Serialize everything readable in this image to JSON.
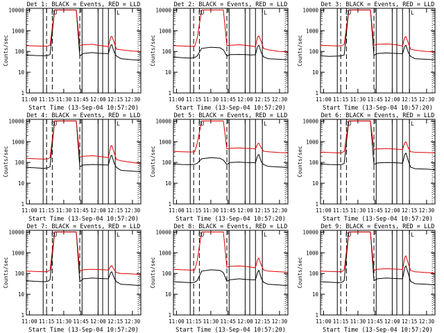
{
  "figure": {
    "xtick_labels": [
      "11:00",
      "11:15",
      "11:30",
      "11:45",
      "12:00",
      "12:15",
      "12:30"
    ],
    "ytick_labels": [
      "1",
      "10",
      "100",
      "1000",
      "10000"
    ],
    "colors": {
      "events": "#000000",
      "lld": "#e00000",
      "frame": "#000000",
      "background": "#ffffff"
    },
    "markers": {
      "D": "D",
      "U": "U",
      "L": "L"
    }
  },
  "chart_data": [
    {
      "type": "line",
      "panel": "1",
      "title": "Det 1: BLACK = Events, RED = LLD",
      "xlabel": "Start Time (13-Sep-04 10:57:20)",
      "ylabel": "Counts/sec",
      "yscale": "log",
      "ylim": [
        1,
        12000
      ],
      "xlim": [
        "10:57:20",
        "12:37:20"
      ],
      "x": [
        "10:57",
        "11:05",
        "11:13",
        "11:16",
        "11:18",
        "11:22",
        "11:30",
        "11:38",
        "11:41",
        "11:44",
        "11:47",
        "11:55",
        "12:00",
        "12:06",
        "12:09",
        "12:11",
        "12:12",
        "12:14",
        "12:16",
        "12:20",
        "12:30",
        "12:37"
      ],
      "series": [
        {
          "name": "Events",
          "values": [
            68,
            64,
            62,
            65,
            70,
            10000,
            10000,
            10000,
            10000,
            60,
            80,
            88,
            82,
            80,
            78,
            200,
            210,
            95,
            60,
            45,
            40,
            38
          ]
        },
        {
          "name": "LLD",
          "values": [
            190,
            185,
            180,
            185,
            200,
            10000,
            10000,
            10000,
            10000,
            190,
            210,
            220,
            200,
            180,
            170,
            500,
            540,
            280,
            130,
            120,
            105,
            100
          ]
        }
      ],
      "vertical_lines": {
        "dashed": [
          "11:15",
          "11:20",
          "11:44"
        ],
        "solid": [
          "11:12",
          "11:46",
          "12:00",
          "12:04",
          "12:09",
          "12:15"
        ],
        "dotted": [
          "12:35"
        ]
      }
    },
    {
      "type": "line",
      "panel": "2",
      "title": "Det 2: BLACK = Events, RED = LLD",
      "xlabel": "Start Time (13-Sep-04 10:57:20)",
      "ylabel": "Counts/sec",
      "yscale": "log",
      "ylim": [
        1,
        12000
      ],
      "xlim": [
        "10:57:20",
        "12:37:20"
      ],
      "x": [
        "10:57",
        "11:05",
        "11:13",
        "11:16",
        "11:18",
        "11:22",
        "11:30",
        "11:38",
        "11:41",
        "11:44",
        "11:47",
        "11:55",
        "12:00",
        "12:06",
        "12:09",
        "12:11",
        "12:12",
        "12:14",
        "12:16",
        "12:20",
        "12:30",
        "12:37"
      ],
      "series": [
        {
          "name": "Events",
          "values": [
            55,
            50,
            48,
            52,
            60,
            140,
            160,
            150,
            120,
            60,
            70,
            72,
            70,
            68,
            70,
            180,
            200,
            90,
            55,
            45,
            42,
            40
          ]
        },
        {
          "name": "LLD",
          "values": [
            190,
            185,
            175,
            180,
            420,
            10000,
            10000,
            10000,
            10000,
            190,
            200,
            210,
            200,
            180,
            170,
            520,
            560,
            300,
            140,
            120,
            100,
            95
          ]
        }
      ],
      "vertical_lines": {
        "dashed": [
          "11:15",
          "11:20",
          "11:44"
        ],
        "solid": [
          "11:12",
          "11:46",
          "12:00",
          "12:04",
          "12:09",
          "12:15"
        ],
        "dotted": [
          "12:35"
        ]
      }
    },
    {
      "type": "line",
      "panel": "3",
      "title": "Det 3: BLACK = Events, RED = LLD",
      "xlabel": "Start Time (13-Sep-04 10:57:20)",
      "ylabel": "Counts/sec",
      "yscale": "log",
      "ylim": [
        1,
        12000
      ],
      "xlim": [
        "10:57:20",
        "12:37:20"
      ],
      "x": [
        "10:57",
        "11:05",
        "11:13",
        "11:16",
        "11:18",
        "11:22",
        "11:30",
        "11:38",
        "11:41",
        "11:44",
        "11:47",
        "11:55",
        "12:00",
        "12:06",
        "12:09",
        "12:11",
        "12:12",
        "12:14",
        "12:16",
        "12:20",
        "12:30",
        "12:37"
      ],
      "series": [
        {
          "name": "Events",
          "values": [
            62,
            58,
            60,
            62,
            68,
            10000,
            10000,
            10000,
            10000,
            65,
            80,
            85,
            82,
            80,
            78,
            180,
            200,
            90,
            58,
            45,
            42,
            40
          ]
        },
        {
          "name": "LLD",
          "values": [
            200,
            190,
            185,
            190,
            220,
            10000,
            10000,
            10000,
            10000,
            200,
            220,
            230,
            220,
            200,
            180,
            480,
            520,
            260,
            130,
            115,
            100,
            95
          ]
        }
      ],
      "vertical_lines": {
        "dashed": [
          "11:15",
          "11:20",
          "11:44"
        ],
        "solid": [
          "11:12",
          "11:46",
          "12:00",
          "12:04",
          "12:09",
          "12:15"
        ],
        "dotted": [
          "12:35"
        ]
      }
    },
    {
      "type": "line",
      "panel": "4",
      "title": "Det 4: BLACK = Events, RED = LLD",
      "xlabel": "Start Time (13-Sep-04 10:57:20)",
      "ylabel": "Counts/sec",
      "yscale": "log",
      "ylim": [
        1,
        12000
      ],
      "xlim": [
        "10:57:20",
        "12:37:20"
      ],
      "x": [
        "10:57",
        "11:05",
        "11:13",
        "11:16",
        "11:18",
        "11:22",
        "11:30",
        "11:38",
        "11:41",
        "11:44",
        "11:47",
        "11:55",
        "12:00",
        "12:06",
        "12:09",
        "12:11",
        "12:12",
        "12:14",
        "12:16",
        "12:20",
        "12:30",
        "12:37"
      ],
      "series": [
        {
          "name": "Events",
          "values": [
            58,
            55,
            52,
            55,
            62,
            10000,
            10000,
            10000,
            10000,
            62,
            75,
            80,
            78,
            76,
            75,
            200,
            220,
            95,
            58,
            42,
            38,
            36
          ]
        },
        {
          "name": "LLD",
          "values": [
            160,
            150,
            145,
            150,
            170,
            10000,
            10000,
            10000,
            10000,
            180,
            200,
            210,
            200,
            180,
            170,
            600,
            650,
            300,
            140,
            120,
            100,
            90
          ]
        }
      ],
      "vertical_lines": {
        "dashed": [
          "11:15",
          "11:20",
          "11:44"
        ],
        "solid": [
          "11:12",
          "11:46",
          "12:00",
          "12:04",
          "12:09",
          "12:15"
        ],
        "dotted": [
          "12:35"
        ]
      }
    },
    {
      "type": "line",
      "panel": "5",
      "title": "Det 5: BLACK = Events, RED = LLD",
      "xlabel": "Start Time (13-Sep-04 10:57:20)",
      "ylabel": "Counts/sec",
      "yscale": "log",
      "ylim": [
        1,
        12000
      ],
      "xlim": [
        "10:57:20",
        "12:37:20"
      ],
      "x": [
        "10:57",
        "11:05",
        "11:13",
        "11:16",
        "11:18",
        "11:22",
        "11:30",
        "11:38",
        "11:41",
        "11:44",
        "11:47",
        "11:55",
        "12:00",
        "12:06",
        "12:09",
        "12:11",
        "12:12",
        "12:14",
        "12:16",
        "12:20",
        "12:30",
        "12:37"
      ],
      "series": [
        {
          "name": "Events",
          "values": [
            85,
            80,
            78,
            82,
            90,
            150,
            170,
            160,
            130,
            80,
            100,
            105,
            100,
            98,
            96,
            220,
            240,
            110,
            80,
            65,
            60,
            58
          ]
        },
        {
          "name": "LLD",
          "values": [
            340,
            330,
            320,
            330,
            800,
            10000,
            10000,
            10000,
            10000,
            450,
            480,
            500,
            480,
            470,
            450,
            800,
            850,
            500,
            350,
            330,
            300,
            290
          ]
        }
      ],
      "vertical_lines": {
        "dashed": [
          "11:15",
          "11:20",
          "11:44"
        ],
        "solid": [
          "11:12",
          "11:46",
          "12:00",
          "12:04",
          "12:09",
          "12:15"
        ],
        "dotted": [
          "12:35"
        ]
      }
    },
    {
      "type": "line",
      "panel": "6",
      "title": "Det 6: BLACK = Events, RED = LLD",
      "xlabel": "Start Time (13-Sep-04 10:57:20)",
      "ylabel": "Counts/sec",
      "yscale": "log",
      "ylim": [
        1,
        12000
      ],
      "xlim": [
        "10:57:20",
        "12:37:20"
      ],
      "x": [
        "10:57",
        "11:05",
        "11:13",
        "11:16",
        "11:18",
        "11:22",
        "11:30",
        "11:38",
        "11:41",
        "11:44",
        "11:47",
        "11:55",
        "12:00",
        "12:06",
        "12:09",
        "12:11",
        "12:12",
        "12:14",
        "12:16",
        "12:20",
        "12:30",
        "12:37"
      ],
      "series": [
        {
          "name": "Events",
          "values": [
            85,
            80,
            78,
            80,
            90,
            10000,
            10000,
            10000,
            10000,
            80,
            95,
            100,
            98,
            95,
            92,
            250,
            280,
            120,
            60,
            50,
            48,
            45
          ]
        },
        {
          "name": "LLD",
          "values": [
            320,
            300,
            290,
            300,
            340,
            10000,
            10000,
            10000,
            10000,
            420,
            450,
            470,
            450,
            430,
            420,
            900,
            1000,
            500,
            330,
            310,
            300,
            290
          ]
        }
      ],
      "vertical_lines": {
        "dashed": [
          "11:15",
          "11:20",
          "11:44"
        ],
        "solid": [
          "11:12",
          "11:46",
          "12:00",
          "12:04",
          "12:09",
          "12:15"
        ],
        "dotted": [
          "12:35"
        ]
      }
    },
    {
      "type": "line",
      "panel": "7",
      "title": "Det 7: BLACK = Events, RED = LLD",
      "xlabel": "Start Time (13-Sep-04 10:57:20)",
      "ylabel": "Counts/sec",
      "yscale": "log",
      "ylim": [
        1,
        12000
      ],
      "xlim": [
        "10:57:20",
        "12:37:20"
      ],
      "x": [
        "10:57",
        "11:05",
        "11:13",
        "11:16",
        "11:18",
        "11:22",
        "11:30",
        "11:38",
        "11:41",
        "11:44",
        "11:47",
        "11:55",
        "12:00",
        "12:06",
        "12:09",
        "12:11",
        "12:12",
        "12:14",
        "12:16",
        "12:20",
        "12:30",
        "12:37"
      ],
      "series": [
        {
          "name": "Events",
          "values": [
            45,
            42,
            40,
            42,
            50,
            10000,
            10000,
            10000,
            10000,
            40,
            55,
            60,
            58,
            56,
            55,
            110,
            120,
            60,
            40,
            30,
            28,
            26
          ]
        },
        {
          "name": "LLD",
          "values": [
            130,
            125,
            120,
            125,
            150,
            10000,
            10000,
            10000,
            10000,
            130,
            150,
            160,
            155,
            150,
            145,
            220,
            240,
            150,
            110,
            100,
            95,
            90
          ]
        }
      ],
      "vertical_lines": {
        "dashed": [
          "11:15",
          "11:20",
          "11:44"
        ],
        "solid": [
          "11:12",
          "11:46",
          "12:00",
          "12:04",
          "12:09",
          "12:15"
        ],
        "dotted": [
          "12:35"
        ]
      }
    },
    {
      "type": "line",
      "panel": "8",
      "title": "Det 8: BLACK = Events, RED = LLD",
      "xlabel": "Start Time (13-Sep-04 10:57:20)",
      "ylabel": "Counts/sec",
      "yscale": "log",
      "ylim": [
        1,
        12000
      ],
      "xlim": [
        "10:57:20",
        "12:37:20"
      ],
      "x": [
        "10:57",
        "11:05",
        "11:13",
        "11:16",
        "11:18",
        "11:22",
        "11:30",
        "11:38",
        "11:41",
        "11:44",
        "11:47",
        "11:55",
        "12:00",
        "12:06",
        "12:09",
        "12:11",
        "12:12",
        "12:14",
        "12:16",
        "12:20",
        "12:30",
        "12:37"
      ],
      "series": [
        {
          "name": "Events",
          "values": [
            40,
            38,
            36,
            38,
            45,
            130,
            150,
            140,
            110,
            42,
            50,
            55,
            52,
            50,
            50,
            120,
            140,
            60,
            38,
            30,
            28,
            26
          ]
        },
        {
          "name": "LLD",
          "values": [
            160,
            150,
            145,
            150,
            400,
            10000,
            10000,
            10000,
            10000,
            200,
            220,
            230,
            220,
            200,
            190,
            500,
            550,
            260,
            150,
            130,
            120,
            115
          ]
        }
      ],
      "vertical_lines": {
        "dashed": [
          "11:15",
          "11:20",
          "11:44"
        ],
        "solid": [
          "11:12",
          "11:46",
          "12:00",
          "12:04",
          "12:09",
          "12:15"
        ],
        "dotted": [
          "12:35"
        ]
      }
    },
    {
      "type": "line",
      "panel": "9",
      "title": "Det 9: BLACK = Events, RED = LLD",
      "xlabel": "Start Time (13-Sep-04 10:57:20)",
      "ylabel": "Counts/sec",
      "yscale": "log",
      "ylim": [
        1,
        12000
      ],
      "xlim": [
        "10:57:20",
        "12:37:20"
      ],
      "x": [
        "10:57",
        "11:05",
        "11:13",
        "11:16",
        "11:18",
        "11:22",
        "11:30",
        "11:38",
        "11:41",
        "11:44",
        "11:47",
        "11:55",
        "12:00",
        "12:06",
        "12:09",
        "12:11",
        "12:12",
        "12:14",
        "12:16",
        "12:20",
        "12:30",
        "12:37"
      ],
      "series": [
        {
          "name": "Events",
          "values": [
            40,
            38,
            36,
            38,
            45,
            10000,
            10000,
            10000,
            10000,
            45,
            55,
            60,
            58,
            56,
            55,
            200,
            230,
            100,
            42,
            32,
            30,
            28
          ]
        },
        {
          "name": "LLD",
          "values": [
            130,
            125,
            120,
            125,
            150,
            10000,
            10000,
            10000,
            10000,
            140,
            160,
            170,
            165,
            160,
            155,
            600,
            700,
            300,
            140,
            120,
            110,
            105
          ]
        }
      ],
      "vertical_lines": {
        "dashed": [
          "11:15",
          "11:20",
          "11:44"
        ],
        "solid": [
          "11:12",
          "11:46",
          "12:00",
          "12:04",
          "12:09",
          "12:15"
        ],
        "dotted": [
          "12:35"
        ]
      }
    }
  ]
}
